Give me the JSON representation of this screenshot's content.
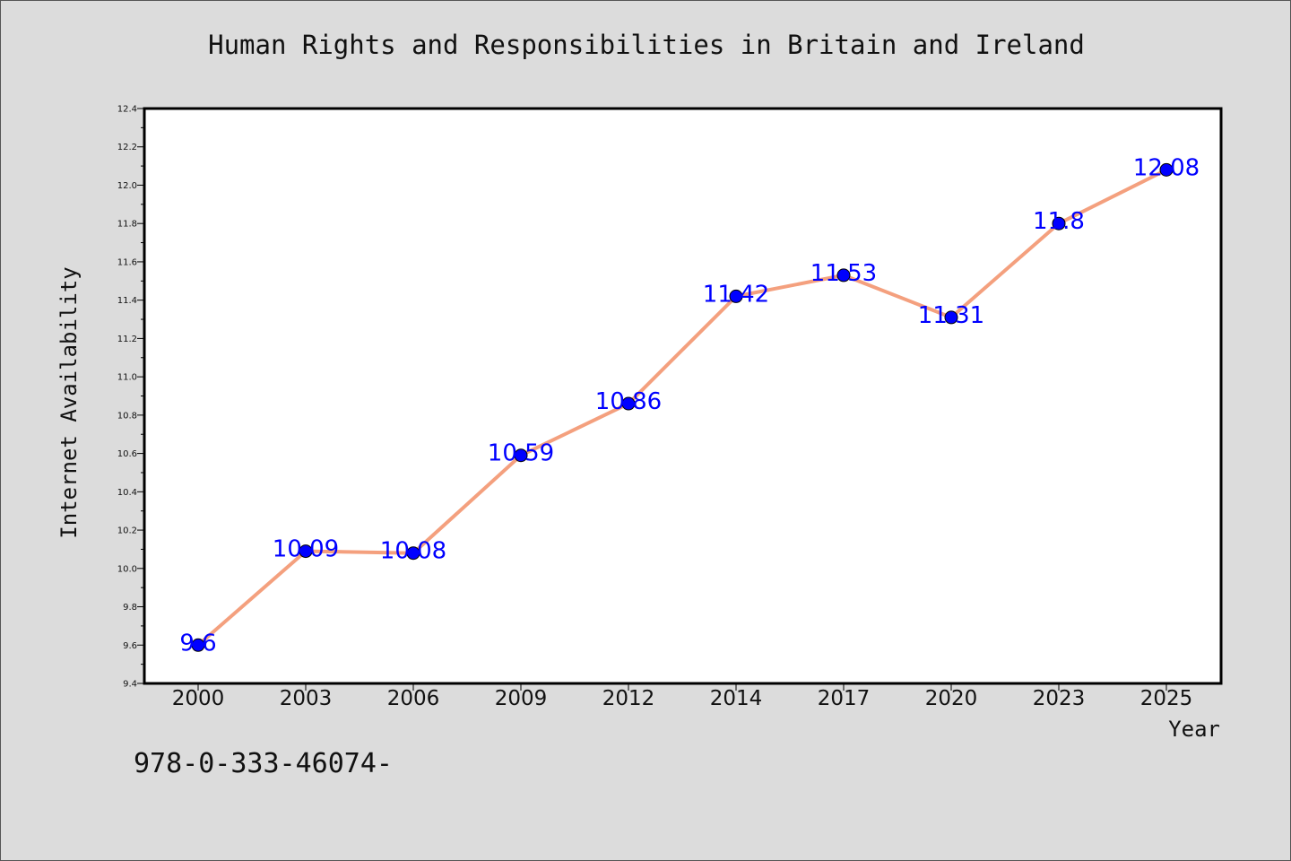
{
  "chart_data": {
    "type": "line",
    "title": "Human Rights and Responsibilities in Britain and Ireland",
    "xlabel": "Year",
    "ylabel": "Internet Availability",
    "categories": [
      "2000",
      "2003",
      "2006",
      "2009",
      "2012",
      "2014",
      "2017",
      "2020",
      "2023",
      "2025"
    ],
    "values": [
      9.6,
      10.09,
      10.08,
      10.59,
      10.86,
      11.42,
      11.53,
      11.31,
      11.8,
      12.08
    ],
    "value_labels": [
      "9.6",
      "10.09",
      "10.08",
      "10.59",
      "10.86",
      "11.42",
      "11.53",
      "11.31",
      "11.8",
      "12.08"
    ],
    "ylim": [
      9.4,
      12.4
    ],
    "yticks": [
      "9.4",
      "9.6",
      "9.8",
      "10.0",
      "10.2",
      "10.4",
      "10.6",
      "10.8",
      "11.0",
      "11.2",
      "11.4",
      "11.6",
      "11.8",
      "12.0",
      "12.2",
      "12.4"
    ],
    "grid": false,
    "colors": {
      "line": "#f4a07e",
      "marker": "#0000ff",
      "label": "#0000ff"
    }
  },
  "footer_text": "978-0-333-46074-"
}
